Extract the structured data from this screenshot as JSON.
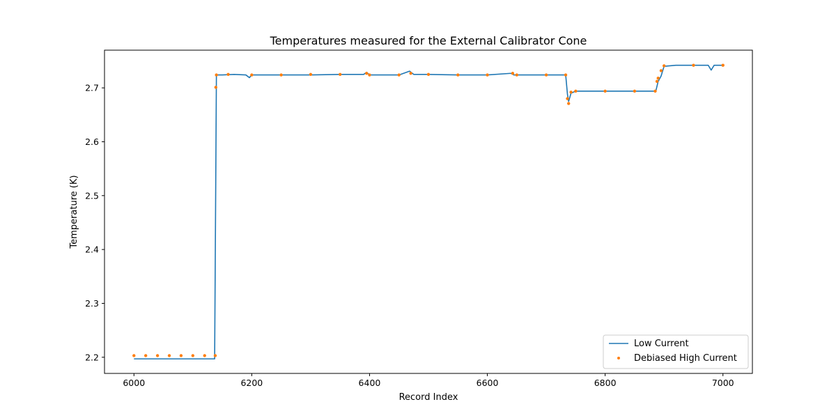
{
  "chart_data": {
    "type": "line",
    "title": "Temperatures measured for the External Calibrator Cone",
    "xlabel": "Record Index",
    "ylabel": "Temperature (K)",
    "xlim": [
      5950,
      7050
    ],
    "ylim": [
      2.17,
      2.77
    ],
    "xticks": [
      6000,
      6200,
      6400,
      6600,
      6800,
      7000
    ],
    "yticks": [
      2.2,
      2.3,
      2.4,
      2.5,
      2.6,
      2.7
    ],
    "ytick_labels": [
      "2.2",
      "2.3",
      "2.4",
      "2.5",
      "2.6",
      "2.7"
    ],
    "grid": false,
    "legend_position": "lower-right",
    "colors": {
      "low_current": "#1f77b4",
      "high_current": "#ff7f0e"
    },
    "series": [
      {
        "name": "Low Current",
        "style": "line",
        "x": [
          6000,
          6020,
          6040,
          6060,
          6080,
          6100,
          6120,
          6137,
          6140,
          6150,
          6170,
          6190,
          6196,
          6200,
          6250,
          6300,
          6350,
          6390,
          6395,
          6400,
          6450,
          6468,
          6475,
          6500,
          6550,
          6600,
          6640,
          6645,
          6700,
          6733,
          6736,
          6738,
          6742,
          6750,
          6780,
          6800,
          6850,
          6880,
          6886,
          6890,
          6895,
          6900,
          6920,
          6950,
          6975,
          6980,
          6985,
          7000
        ],
        "y": [
          2.197,
          2.197,
          2.197,
          2.197,
          2.197,
          2.197,
          2.197,
          2.197,
          2.724,
          2.724,
          2.725,
          2.724,
          2.719,
          2.724,
          2.724,
          2.724,
          2.725,
          2.725,
          2.729,
          2.724,
          2.724,
          2.731,
          2.725,
          2.725,
          2.724,
          2.724,
          2.727,
          2.724,
          2.724,
          2.724,
          2.688,
          2.675,
          2.69,
          2.694,
          2.694,
          2.694,
          2.694,
          2.694,
          2.694,
          2.712,
          2.722,
          2.74,
          2.742,
          2.742,
          2.742,
          2.733,
          2.742,
          2.742
        ]
      },
      {
        "name": "Debiased High Current",
        "style": "points",
        "x": [
          6000,
          6020,
          6040,
          6060,
          6080,
          6100,
          6120,
          6138,
          6139,
          6140,
          6160,
          6200,
          6250,
          6300,
          6350,
          6395,
          6400,
          6450,
          6470,
          6500,
          6550,
          6600,
          6643,
          6650,
          6700,
          6733,
          6736,
          6738,
          6742,
          6750,
          6800,
          6850,
          6885,
          6888,
          6890,
          6895,
          6900,
          6950,
          7000
        ],
        "y": [
          2.203,
          2.203,
          2.203,
          2.203,
          2.203,
          2.203,
          2.203,
          2.203,
          2.701,
          2.724,
          2.725,
          2.724,
          2.724,
          2.725,
          2.725,
          2.727,
          2.724,
          2.724,
          2.727,
          2.725,
          2.724,
          2.724,
          2.727,
          2.724,
          2.724,
          2.724,
          2.68,
          2.671,
          2.692,
          2.694,
          2.694,
          2.694,
          2.694,
          2.712,
          2.718,
          2.732,
          2.741,
          2.742,
          2.742
        ]
      }
    ]
  }
}
